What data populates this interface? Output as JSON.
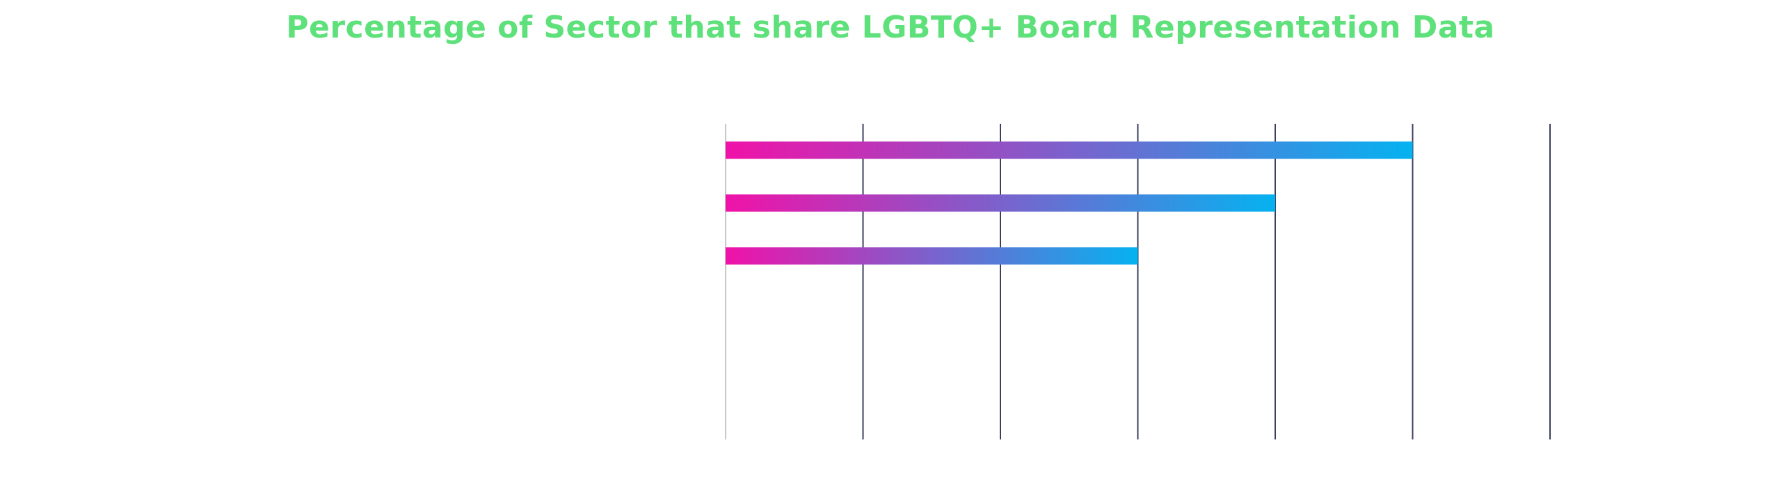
{
  "chart_data": {
    "type": "bar",
    "orientation": "horizontal",
    "title": "Percentage of Sector that share LGBTQ+ Board Representation Data",
    "title_color": "#5ee07a",
    "categories": [
      "",
      "",
      ""
    ],
    "values": [
      5,
      4,
      3
    ],
    "xlim": [
      0,
      6
    ],
    "xgrid_step": 1,
    "grid": true,
    "grid_color": "#3b3f5c",
    "axis_color": "#c8c8c8",
    "bar_gradient": [
      "#f012a8",
      "#05b2f0"
    ]
  }
}
